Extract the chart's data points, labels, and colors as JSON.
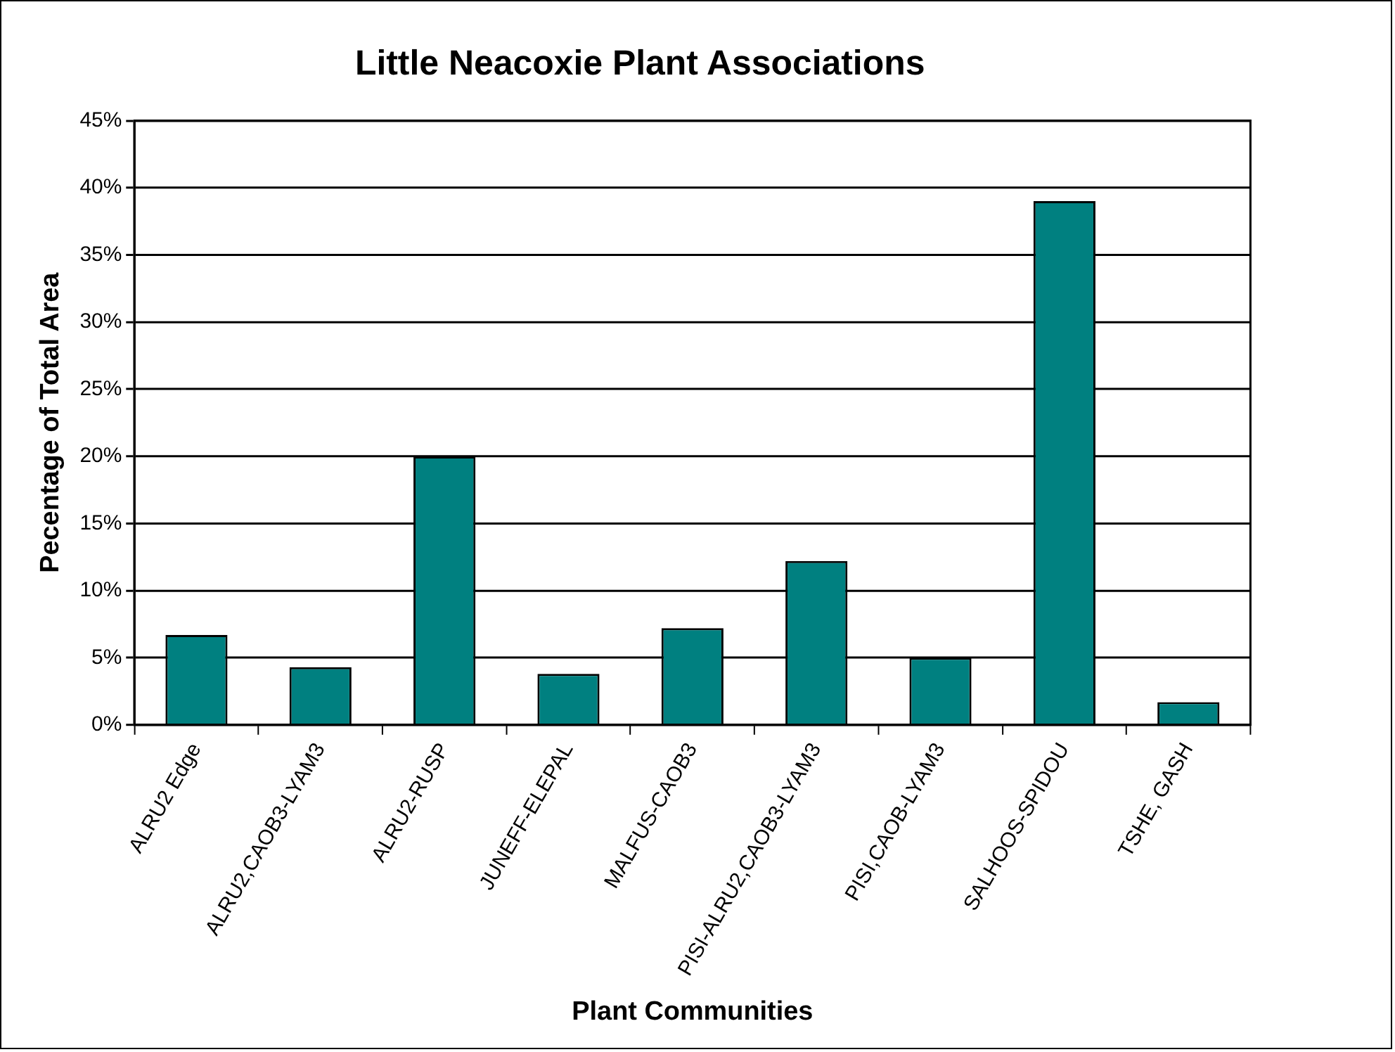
{
  "chart_data": {
    "type": "bar",
    "title": "Little Neacoxie Plant Associations",
    "xlabel": "Plant Communities",
    "ylabel": "Pecentage of Total Area",
    "categories": [
      "ALRU2 Edge",
      "ALRU2,CAOB3-LYAM3",
      "ALRU2-RUSP",
      "JUNEFF-ELEPAL",
      "MALFUS-CAOB3",
      "PISI-ALRU2,CAOB3-LYAM3",
      "PISI,CAOB-LYAM3",
      "SALHOOS-SPIDOU",
      "TSHE, GASH"
    ],
    "values": [
      6.7,
      4.3,
      20,
      3.8,
      7.2,
      12.2,
      5,
      39,
      1.7
    ],
    "color": "#008080",
    "ylim": [
      0,
      45
    ],
    "yticks": [
      {
        "value": 0,
        "label": "0%"
      },
      {
        "value": 5,
        "label": "5%"
      },
      {
        "value": 10,
        "label": "10%"
      },
      {
        "value": 15,
        "label": "15%"
      },
      {
        "value": 20,
        "label": "20%"
      },
      {
        "value": 25,
        "label": "25%"
      },
      {
        "value": 30,
        "label": "30%"
      },
      {
        "value": 35,
        "label": "35%"
      },
      {
        "value": 40,
        "label": "40%"
      },
      {
        "value": 45,
        "label": "45%"
      }
    ],
    "grid": "y",
    "legend": false
  }
}
